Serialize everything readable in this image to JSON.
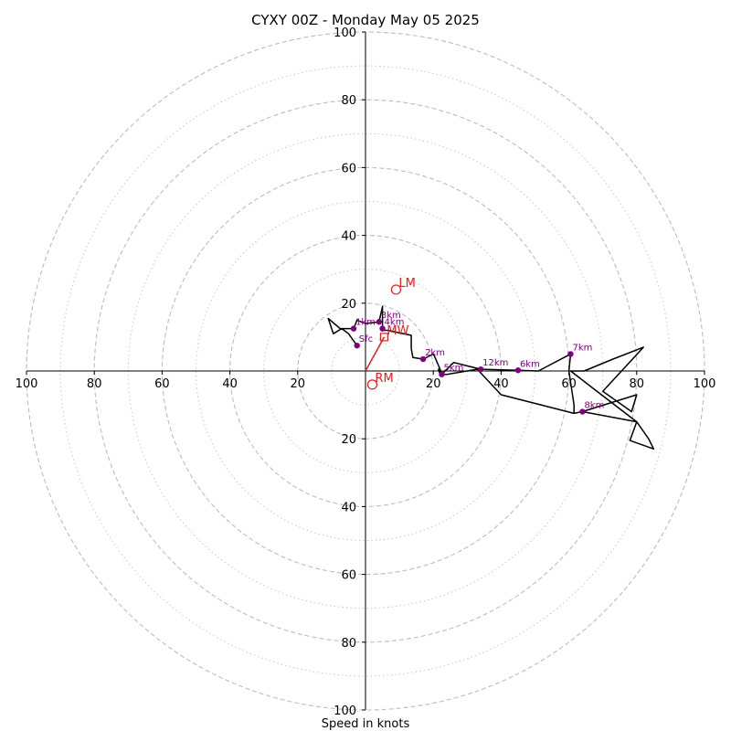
{
  "chart_data": {
    "type": "hodograph",
    "title": "CYXY 00Z - Monday May 05 2025",
    "xlabel": "Speed in knots",
    "axis_range": [
      -100,
      100
    ],
    "ring_major": [
      20,
      40,
      60,
      80,
      100
    ],
    "ring_minor": [
      10,
      30,
      50,
      70,
      90
    ],
    "tick_labels": {
      "x_left": [
        "100",
        "80",
        "60",
        "40",
        "20"
      ],
      "x_right": [
        "20",
        "40",
        "60",
        "80",
        "100"
      ],
      "y_top": [
        "100",
        "80",
        "60",
        "40",
        "20"
      ],
      "y_bottom": [
        "20",
        "40",
        "60",
        "80",
        "100"
      ]
    },
    "tick_values": {
      "x_left": [
        -100,
        -80,
        -60,
        -40,
        -20
      ],
      "x_right": [
        20,
        40,
        60,
        80,
        100
      ],
      "y_top": [
        100,
        80,
        60,
        40,
        20
      ],
      "y_bottom": [
        -20,
        -40,
        -60,
        -80,
        -100
      ]
    },
    "trace_color": "#000000",
    "label_color": "#800080",
    "motion_color": "#e02020",
    "hodograph_trace": [
      [
        -2.5,
        7.5
      ],
      [
        -5,
        11
      ],
      [
        -7,
        12.5
      ],
      [
        -9.5,
        11
      ],
      [
        -11,
        15.5
      ],
      [
        -7.5,
        12.5
      ],
      [
        -3.5,
        12.5
      ],
      [
        -2.5,
        15
      ],
      [
        0,
        14
      ],
      [
        4,
        14.5
      ],
      [
        5,
        19
      ],
      [
        5,
        16.5
      ],
      [
        5,
        12
      ],
      [
        6.5,
        12
      ],
      [
        13.5,
        10.5
      ],
      [
        13.5,
        6.5
      ],
      [
        14,
        4
      ],
      [
        17,
        3.5
      ],
      [
        20,
        5
      ],
      [
        20.5,
        4
      ],
      [
        22,
        0.5
      ],
      [
        22.5,
        -1
      ],
      [
        24,
        0.5
      ],
      [
        26,
        2.5
      ],
      [
        34,
        0.5
      ],
      [
        45,
        0.2
      ],
      [
        51,
        0
      ],
      [
        60.5,
        5
      ],
      [
        60,
        0
      ],
      [
        61.5,
        -10
      ],
      [
        61.5,
        -12.5
      ],
      [
        64,
        -12
      ],
      [
        80,
        -7
      ],
      [
        78.5,
        -12
      ],
      [
        70,
        -6
      ],
      [
        82,
        7
      ],
      [
        73,
        3.5
      ],
      [
        64.5,
        0
      ],
      [
        60.5,
        0
      ],
      [
        67,
        -5
      ],
      [
        80,
        -15
      ],
      [
        83.5,
        -20
      ],
      [
        85,
        -23
      ],
      [
        78,
        -20.5
      ],
      [
        80,
        -15
      ],
      [
        64,
        -12
      ],
      [
        61.5,
        -12.5
      ],
      [
        40,
        -7
      ],
      [
        33,
        0.5
      ],
      [
        24,
        -1
      ],
      [
        22,
        -1
      ],
      [
        21.5,
        0.5
      ],
      [
        22.5,
        -1
      ]
    ],
    "height_points": [
      {
        "label": "Sfc",
        "u": -2.5,
        "v": 7.5
      },
      {
        "label": "1km",
        "u": -3.5,
        "v": 12.5
      },
      {
        "label": "3km",
        "u": 4,
        "v": 14.5
      },
      {
        "label": "4km",
        "u": 5,
        "v": 12.5
      },
      {
        "label": "2km",
        "u": 17,
        "v": 3.5
      },
      {
        "label": "5km",
        "u": 22.5,
        "v": -1
      },
      {
        "label": "12km",
        "u": 34,
        "v": 0.5
      },
      {
        "label": "6km",
        "u": 45,
        "v": 0.2
      },
      {
        "label": "7km",
        "u": 60.5,
        "v": 5
      },
      {
        "label": "8km",
        "u": 64,
        "v": -12
      }
    ],
    "storm_motion": {
      "LM": {
        "label": "LM",
        "u": 9,
        "v": 24
      },
      "MW": {
        "label": "MW",
        "u": 5.5,
        "v": 10
      },
      "RM": {
        "label": "RM",
        "u": 2,
        "v": -4
      }
    }
  }
}
